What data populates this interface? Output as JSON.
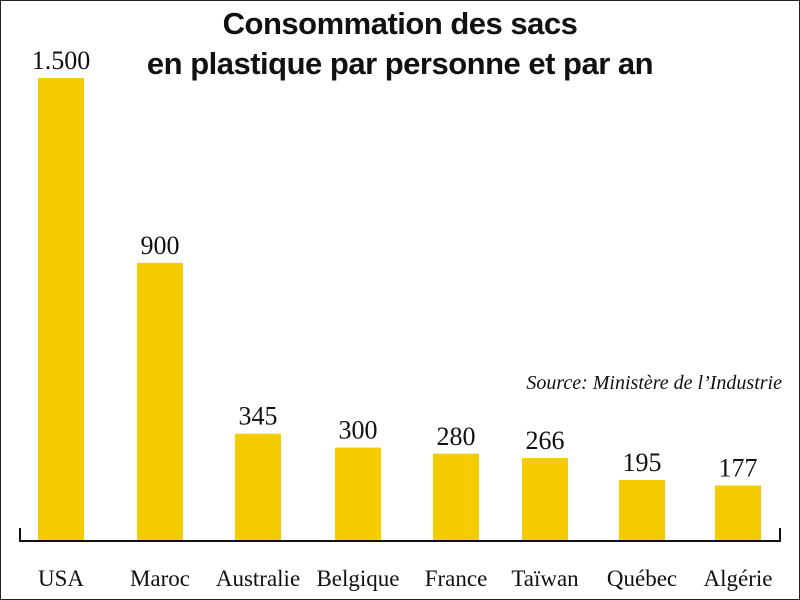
{
  "chart_data": {
    "type": "bar",
    "title": "Consommation des sacs en plastique par personne et par an",
    "title_lines": [
      "Consommation des sacs",
      "en plastique par personne et par an"
    ],
    "source": "Source: Ministère de l’Industrie",
    "categories": [
      "USA",
      "Maroc",
      "Australie",
      "Belgique",
      "France",
      "Taïwan",
      "Québec",
      "Algérie"
    ],
    "values": [
      1500,
      900,
      345,
      300,
      280,
      266,
      195,
      177
    ],
    "value_labels": [
      "1.500",
      "900",
      "345",
      "300",
      "280",
      "266",
      "195",
      "177"
    ],
    "ylim": [
      0,
      1500
    ],
    "grid": false,
    "bar_color": "#f5cc00"
  }
}
